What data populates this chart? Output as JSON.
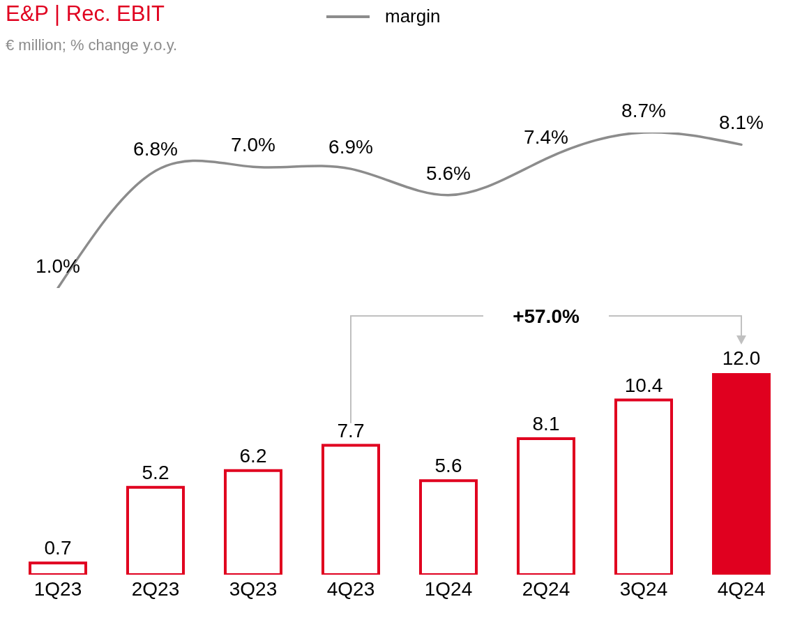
{
  "chart_data": [
    {
      "type": "line",
      "title": "E&P | Rec. EBIT",
      "subtitle": "€ million; % change y.o.y.",
      "categories": [
        null,
        null,
        null,
        null,
        null,
        null,
        null,
        null
      ],
      "series": [
        {
          "name": "margin",
          "color": "#8c8c8c",
          "values": [
            1.0,
            6.8,
            7.0,
            6.9,
            5.6,
            7.4,
            8.7,
            8.1
          ],
          "value_labels": [
            "1.0%",
            "6.8%",
            "7.0%",
            "6.9%",
            "5.6%",
            "7.4%",
            "8.7%",
            "8.1%"
          ]
        }
      ],
      "marker": "none",
      "tick_labels": false,
      "legend": "top"
    },
    {
      "type": "bar",
      "categories": [
        "1Q23",
        "2Q23",
        "3Q23",
        "4Q23",
        "1Q24",
        "2Q24",
        "3Q24",
        "4Q24"
      ],
      "series": [
        {
          "color": "#e0001f",
          "colors": [
            "#ffffff",
            "#ffffff",
            "#ffffff",
            "#ffffff",
            "#ffffff",
            "#ffffff",
            "#ffffff",
            "#e0001f"
          ],
          "values": [
            0.7,
            5.2,
            6.2,
            7.7,
            5.6,
            8.1,
            10.4,
            12.0
          ],
          "value_labels": [
            "0.7",
            "5.2",
            "6.2",
            "7.7",
            "5.6",
            "8.1",
            "10.4",
            "12.0"
          ]
        }
      ],
      "tick_labels": "x",
      "annotations": [
        "+57.0%"
      ]
    }
  ]
}
